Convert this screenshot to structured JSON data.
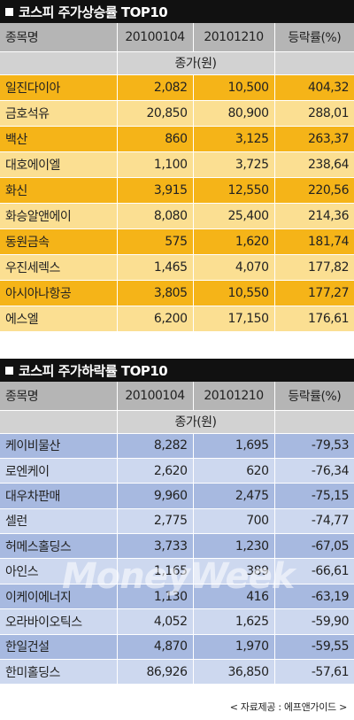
{
  "gainers": {
    "title": "코스피 주가상승률 TOP10",
    "headers": {
      "name": "종목명",
      "d1": "20100104",
      "d2": "20101210",
      "rate": "등락률(%)"
    },
    "unit": "종가(원)",
    "rows": [
      {
        "name": "일진다이아",
        "d1": "2,082",
        "d2": "10,500",
        "rate": "404,32"
      },
      {
        "name": "금호석유",
        "d1": "20,850",
        "d2": "80,900",
        "rate": "288,01"
      },
      {
        "name": "백산",
        "d1": "860",
        "d2": "3,125",
        "rate": "263,37"
      },
      {
        "name": "대호에이엘",
        "d1": "1,100",
        "d2": "3,725",
        "rate": "238,64"
      },
      {
        "name": "화신",
        "d1": "3,915",
        "d2": "12,550",
        "rate": "220,56"
      },
      {
        "name": "화승알앤에이",
        "d1": "8,080",
        "d2": "25,400",
        "rate": "214,36"
      },
      {
        "name": "동원금속",
        "d1": "575",
        "d2": "1,620",
        "rate": "181,74"
      },
      {
        "name": "우진세렉스",
        "d1": "1,465",
        "d2": "4,070",
        "rate": "177,82"
      },
      {
        "name": "아시아나항공",
        "d1": "3,805",
        "d2": "10,550",
        "rate": "177,27"
      },
      {
        "name": "에스엘",
        "d1": "6,200",
        "d2": "17,150",
        "rate": "176,61"
      }
    ]
  },
  "losers": {
    "title": "코스피 주가하락률 TOP10",
    "headers": {
      "name": "종목명",
      "d1": "20100104",
      "d2": "20101210",
      "rate": "등락률(%)"
    },
    "unit": "종가(원)",
    "rows": [
      {
        "name": "케이비물산",
        "d1": "8,282",
        "d2": "1,695",
        "rate": "-79,53"
      },
      {
        "name": "로엔케이",
        "d1": "2,620",
        "d2": "620",
        "rate": "-76,34"
      },
      {
        "name": "대우차판매",
        "d1": "9,960",
        "d2": "2,475",
        "rate": "-75,15"
      },
      {
        "name": "셀런",
        "d1": "2,775",
        "d2": "700",
        "rate": "-74,77"
      },
      {
        "name": "허메스홀딩스",
        "d1": "3,733",
        "d2": "1,230",
        "rate": "-67,05"
      },
      {
        "name": "아인스",
        "d1": "1,165",
        "d2": "389",
        "rate": "-66,61"
      },
      {
        "name": "이케이에너지",
        "d1": "1,130",
        "d2": "416",
        "rate": "-63,19"
      },
      {
        "name": "오라바이오틱스",
        "d1": "4,052",
        "d2": "1,625",
        "rate": "-59,90"
      },
      {
        "name": "한일건설",
        "d1": "4,870",
        "d2": "1,970",
        "rate": "-59,55"
      },
      {
        "name": "한미홀딩스",
        "d1": "86,926",
        "d2": "36,850",
        "rate": "-57,61"
      }
    ]
  },
  "watermark": "MoneyWeek",
  "credit": "< 자료제공 : 에프앤가이드 >"
}
